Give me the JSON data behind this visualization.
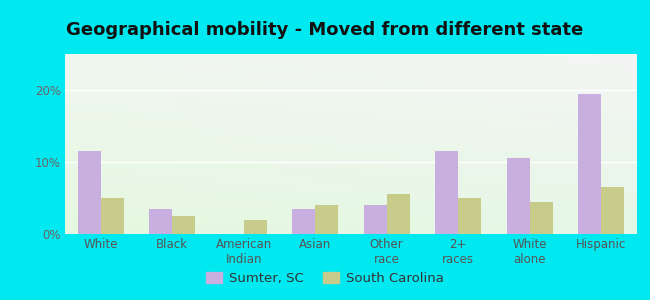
{
  "title": "Geographical mobility - Moved from different state",
  "categories": [
    "White",
    "Black",
    "American\nIndian",
    "Asian",
    "Other\nrace",
    "2+\nraces",
    "White\nalone",
    "Hispanic"
  ],
  "sumter_values": [
    11.5,
    3.5,
    0,
    3.5,
    4.0,
    11.5,
    10.5,
    19.5
  ],
  "sc_values": [
    5.0,
    2.5,
    2.0,
    4.0,
    5.5,
    5.0,
    4.5,
    6.5
  ],
  "sumter_color": "#c9aee0",
  "sc_color": "#c8cc8a",
  "outer_background": "#00e8f0",
  "ylim": [
    0,
    25
  ],
  "yticks": [
    0,
    10,
    20
  ],
  "ytick_labels": [
    "0%",
    "10%",
    "20%"
  ],
  "legend_labels": [
    "Sumter, SC",
    "South Carolina"
  ],
  "bar_width": 0.32,
  "title_fontsize": 13,
  "tick_fontsize": 8.5,
  "legend_fontsize": 9.5
}
